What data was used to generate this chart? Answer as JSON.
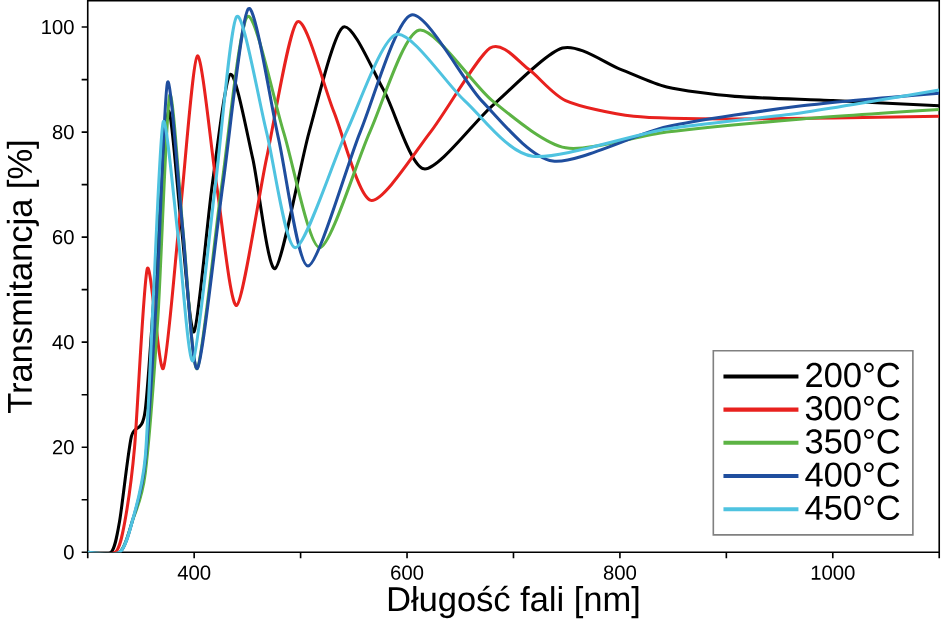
{
  "chart_data": {
    "type": "line",
    "xlabel": "Długość fali [nm]",
    "ylabel": "Transmitancja [%]",
    "xlim": [
      300,
      1100
    ],
    "ylim": [
      0,
      105
    ],
    "xticks": [
      {
        "value": 300,
        "label": null
      },
      400,
      {
        "value": 500,
        "label": null
      },
      600,
      {
        "value": 700,
        "label": null
      },
      800,
      {
        "value": 900,
        "label": null
      },
      1000,
      {
        "value": 1100,
        "label": null
      }
    ],
    "yticks": [
      0,
      {
        "value": 10,
        "label": null
      },
      20,
      {
        "value": 30,
        "label": null
      },
      40,
      {
        "value": 50,
        "label": null
      },
      60,
      {
        "value": 70,
        "label": null
      },
      80,
      {
        "value": 90,
        "label": null
      },
      100
    ],
    "legend": "bottom right",
    "grid": false,
    "marker": "none",
    "line_style": "solid",
    "series": [
      {
        "name": "200°C",
        "color": "#000000",
        "x": [
          300,
          322,
          330,
          341,
          354,
          366,
          376,
          388,
          400,
          417,
          434,
          455,
          476,
          508,
          540,
          578,
          616,
          680,
          746,
          800,
          844,
          908,
          1000,
          1100
        ],
        "values": [
          0,
          0,
          6,
          22,
          27,
          60,
          84,
          62,
          42,
          70,
          91,
          75,
          54,
          80,
          100,
          88,
          73,
          85,
          96,
          92,
          88.6,
          86.8,
          86,
          85
        ]
      },
      {
        "name": "300°C",
        "color": "#e8211e",
        "x": [
          300,
          326,
          335,
          344,
          356,
          371,
          387,
          403,
          421,
          440,
          468,
          497,
          531,
          566,
          622,
          678,
          714,
          749,
          813,
          908,
          1100
        ],
        "values": [
          0,
          0,
          6,
          20,
          54,
          35,
          65,
          94.5,
          70,
          47,
          75,
          101,
          84,
          67,
          80,
          96,
          92,
          86,
          83,
          82.5,
          83
        ]
      },
      {
        "name": "350°C",
        "color": "#5cb344",
        "x": [
          300,
          330,
          342,
          354,
          366,
          377,
          390,
          403,
          426,
          450,
          484,
          518,
          565,
          611,
          680,
          749,
          844,
          971,
          1100
        ],
        "values": [
          0,
          0,
          6,
          15,
          45,
          87,
          60,
          35,
          70,
          102,
          80,
          58,
          80,
          99.4,
          86,
          77,
          80,
          82.5,
          84.3
        ]
      },
      {
        "name": "400°C",
        "color": "#1f4e9e",
        "x": [
          300,
          330,
          342,
          354,
          365,
          375,
          389,
          403,
          427,
          451,
          479,
          507,
          556,
          604,
          670,
          737,
          844,
          971,
          1100
        ],
        "values": [
          0,
          0,
          6,
          17,
          50,
          89.5,
          62,
          35,
          70,
          103.5,
          79,
          54.5,
          80,
          102.3,
          86,
          74.5,
          81,
          85,
          87.4
        ]
      },
      {
        "name": "450°C",
        "color": "#4fc3e0",
        "x": [
          300,
          330,
          342,
          354,
          362,
          371,
          385,
          399,
          420,
          440,
          468,
          495,
          543,
          590,
          654,
          718,
          844,
          971,
          1100
        ],
        "values": [
          0,
          0,
          6,
          18,
          50,
          82,
          60,
          36.5,
          70,
          102,
          80,
          58,
          80,
          98.6,
          86,
          75.4,
          80.6,
          83.7,
          88
        ]
      }
    ]
  }
}
